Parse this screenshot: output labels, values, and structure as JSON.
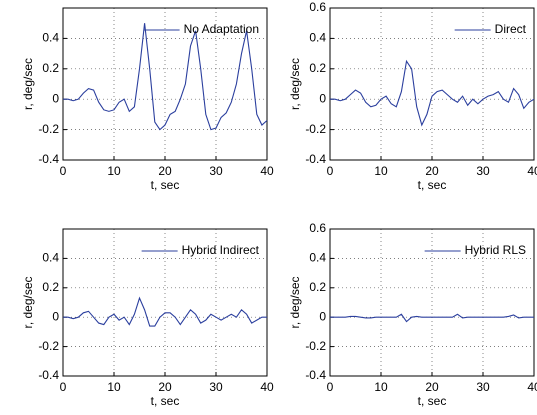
{
  "chart_data": [
    {
      "type": "line",
      "xlabel": "t, sec",
      "ylabel": "r, deg/sec",
      "x": [
        0,
        1,
        2,
        3,
        4,
        5,
        6,
        7,
        8,
        9,
        10,
        11,
        12,
        13,
        14,
        15,
        16,
        17,
        18,
        19,
        20,
        21,
        22,
        23,
        24,
        25,
        26,
        27,
        28,
        29,
        30,
        31,
        32,
        33,
        34,
        35,
        36,
        37,
        38,
        39,
        40
      ],
      "series": [
        {
          "name": "No Adaptation",
          "color": "#2b3f9e",
          "values": [
            0,
            0,
            -0.01,
            0,
            0.04,
            0.07,
            0.06,
            -0.02,
            -0.07,
            -0.08,
            -0.07,
            -0.02,
            0,
            -0.08,
            -0.05,
            0.2,
            0.5,
            0.2,
            -0.15,
            -0.2,
            -0.17,
            -0.1,
            -0.08,
            0,
            0.1,
            0.35,
            0.45,
            0.2,
            -0.1,
            -0.2,
            -0.19,
            -0.12,
            -0.09,
            -0.02,
            0.1,
            0.3,
            0.45,
            0.2,
            -0.1,
            -0.17,
            -0.14
          ]
        }
      ],
      "xlim": [
        0,
        40
      ],
      "xticks": [
        0,
        10,
        20,
        30,
        40
      ],
      "ylim": [
        -0.4,
        0.6
      ],
      "yticks": [
        -0.4,
        -0.2,
        0,
        0.2,
        0.4
      ],
      "grid": true,
      "legend": "upper-right"
    },
    {
      "type": "line",
      "xlabel": "t, sec",
      "ylabel": "r, deg/sec",
      "x": [
        0,
        1,
        2,
        3,
        4,
        5,
        6,
        7,
        8,
        9,
        10,
        11,
        12,
        13,
        14,
        15,
        16,
        17,
        18,
        19,
        20,
        21,
        22,
        23,
        24,
        25,
        26,
        27,
        28,
        29,
        30,
        31,
        32,
        33,
        34,
        35,
        36,
        37,
        38,
        39,
        40
      ],
      "series": [
        {
          "name": "Direct",
          "color": "#2b3f9e",
          "values": [
            0,
            0,
            -0.01,
            0,
            0.03,
            0.06,
            0.04,
            -0.02,
            -0.05,
            -0.04,
            0,
            0.02,
            -0.03,
            -0.05,
            0.05,
            0.25,
            0.2,
            -0.05,
            -0.17,
            -0.1,
            0.02,
            0.05,
            0.06,
            0.03,
            0,
            -0.02,
            0.02,
            -0.04,
            0,
            -0.03,
            0,
            0.02,
            0.03,
            0.05,
            0,
            -0.02,
            0.07,
            0.03,
            -0.06,
            -0.02,
            0
          ]
        }
      ],
      "xlim": [
        0,
        40
      ],
      "xticks": [
        0,
        10,
        20,
        30,
        40
      ],
      "ylim": [
        -0.4,
        0.6
      ],
      "yticks": [
        -0.4,
        -0.2,
        0,
        0.2,
        0.4,
        0.6
      ],
      "grid": true,
      "legend": "upper-right"
    },
    {
      "type": "line",
      "xlabel": "t, sec",
      "ylabel": "r, deg/sec",
      "x": [
        0,
        1,
        2,
        3,
        4,
        5,
        6,
        7,
        8,
        9,
        10,
        11,
        12,
        13,
        14,
        15,
        16,
        17,
        18,
        19,
        20,
        21,
        22,
        23,
        24,
        25,
        26,
        27,
        28,
        29,
        30,
        31,
        32,
        33,
        34,
        35,
        36,
        37,
        38,
        39,
        40
      ],
      "series": [
        {
          "name": "Hybrid Indirect",
          "color": "#2b3f9e",
          "values": [
            0,
            0,
            -0.01,
            0,
            0.03,
            0.04,
            0,
            -0.04,
            -0.05,
            0,
            0.02,
            -0.02,
            0,
            -0.05,
            0.02,
            0.13,
            0.05,
            -0.06,
            -0.06,
            0,
            0.03,
            0.03,
            0,
            -0.05,
            0,
            0.05,
            0.02,
            -0.04,
            -0.02,
            0.02,
            0,
            -0.02,
            0,
            0.02,
            0,
            0.05,
            0.02,
            -0.04,
            -0.02,
            0,
            0
          ]
        }
      ],
      "xlim": [
        0,
        40
      ],
      "xticks": [
        0,
        10,
        20,
        30,
        40
      ],
      "ylim": [
        -0.4,
        0.6
      ],
      "yticks": [
        -0.4,
        -0.2,
        0,
        0.2,
        0.4
      ],
      "grid": true,
      "legend": "upper-right"
    },
    {
      "type": "line",
      "xlabel": "t, sec",
      "ylabel": "r, deg/sec",
      "x": [
        0,
        1,
        2,
        3,
        4,
        5,
        6,
        7,
        8,
        9,
        10,
        11,
        12,
        13,
        14,
        15,
        16,
        17,
        18,
        19,
        20,
        21,
        22,
        23,
        24,
        25,
        26,
        27,
        28,
        29,
        30,
        31,
        32,
        33,
        34,
        35,
        36,
        37,
        38,
        39,
        40
      ],
      "series": [
        {
          "name": "Hybrid RLS",
          "color": "#2b3f9e",
          "values": [
            0,
            0,
            0,
            0,
            0.005,
            0.005,
            0,
            -0.005,
            -0.005,
            0,
            0,
            0,
            0,
            0,
            0.02,
            -0.03,
            0,
            0.005,
            0,
            0,
            0,
            0,
            0,
            0,
            0,
            0.02,
            -0.005,
            0,
            0,
            0,
            0,
            0,
            0,
            0,
            0,
            0.005,
            0.015,
            -0.005,
            0,
            0,
            0
          ]
        }
      ],
      "xlim": [
        0,
        40
      ],
      "xticks": [
        0,
        10,
        20,
        30,
        40
      ],
      "ylim": [
        -0.4,
        0.6
      ],
      "yticks": [
        -0.4,
        -0.2,
        0,
        0.2,
        0.4,
        0.6
      ],
      "grid": true,
      "legend": "upper-right"
    }
  ]
}
